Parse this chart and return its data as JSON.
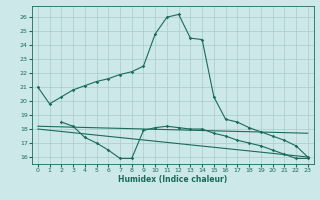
{
  "title": "",
  "xlabel": "Humidex (Indice chaleur)",
  "bg_color": "#cce8e8",
  "grid_color": "#aacccc",
  "line_color": "#1a6b5a",
  "ylim": [
    15.5,
    26.8
  ],
  "xlim": [
    -0.5,
    23.5
  ],
  "yticks": [
    16,
    17,
    18,
    19,
    20,
    21,
    22,
    23,
    24,
    25,
    26
  ],
  "xticks": [
    0,
    1,
    2,
    3,
    4,
    5,
    6,
    7,
    8,
    9,
    10,
    11,
    12,
    13,
    14,
    15,
    16,
    17,
    18,
    19,
    20,
    21,
    22,
    23
  ],
  "line1_x": [
    0,
    1,
    2,
    3,
    4,
    5,
    6,
    7,
    8,
    9,
    10,
    11,
    12,
    13,
    14,
    15,
    16,
    17,
    18,
    19,
    20,
    21,
    22,
    23
  ],
  "line1_y": [
    21.0,
    19.8,
    20.3,
    20.8,
    21.1,
    21.4,
    21.6,
    21.9,
    22.1,
    22.5,
    24.8,
    26.0,
    26.2,
    24.5,
    24.4,
    20.3,
    18.7,
    18.5,
    18.1,
    17.8,
    17.5,
    17.2,
    16.8,
    16.0
  ],
  "line2_x": [
    2,
    3,
    4,
    5,
    6,
    7,
    8,
    9,
    10,
    11,
    12,
    13,
    14,
    15,
    16,
    17,
    18,
    19,
    20,
    21,
    22,
    23
  ],
  "line2_y": [
    18.5,
    18.2,
    17.4,
    17.0,
    16.5,
    15.9,
    15.9,
    17.9,
    18.1,
    18.2,
    18.1,
    18.0,
    18.0,
    17.7,
    17.5,
    17.2,
    17.0,
    16.8,
    16.5,
    16.2,
    15.9,
    15.9
  ],
  "line3_x": [
    0,
    23
  ],
  "line3_y": [
    18.2,
    17.7
  ],
  "line4_x": [
    0,
    23
  ],
  "line4_y": [
    18.0,
    16.0
  ]
}
